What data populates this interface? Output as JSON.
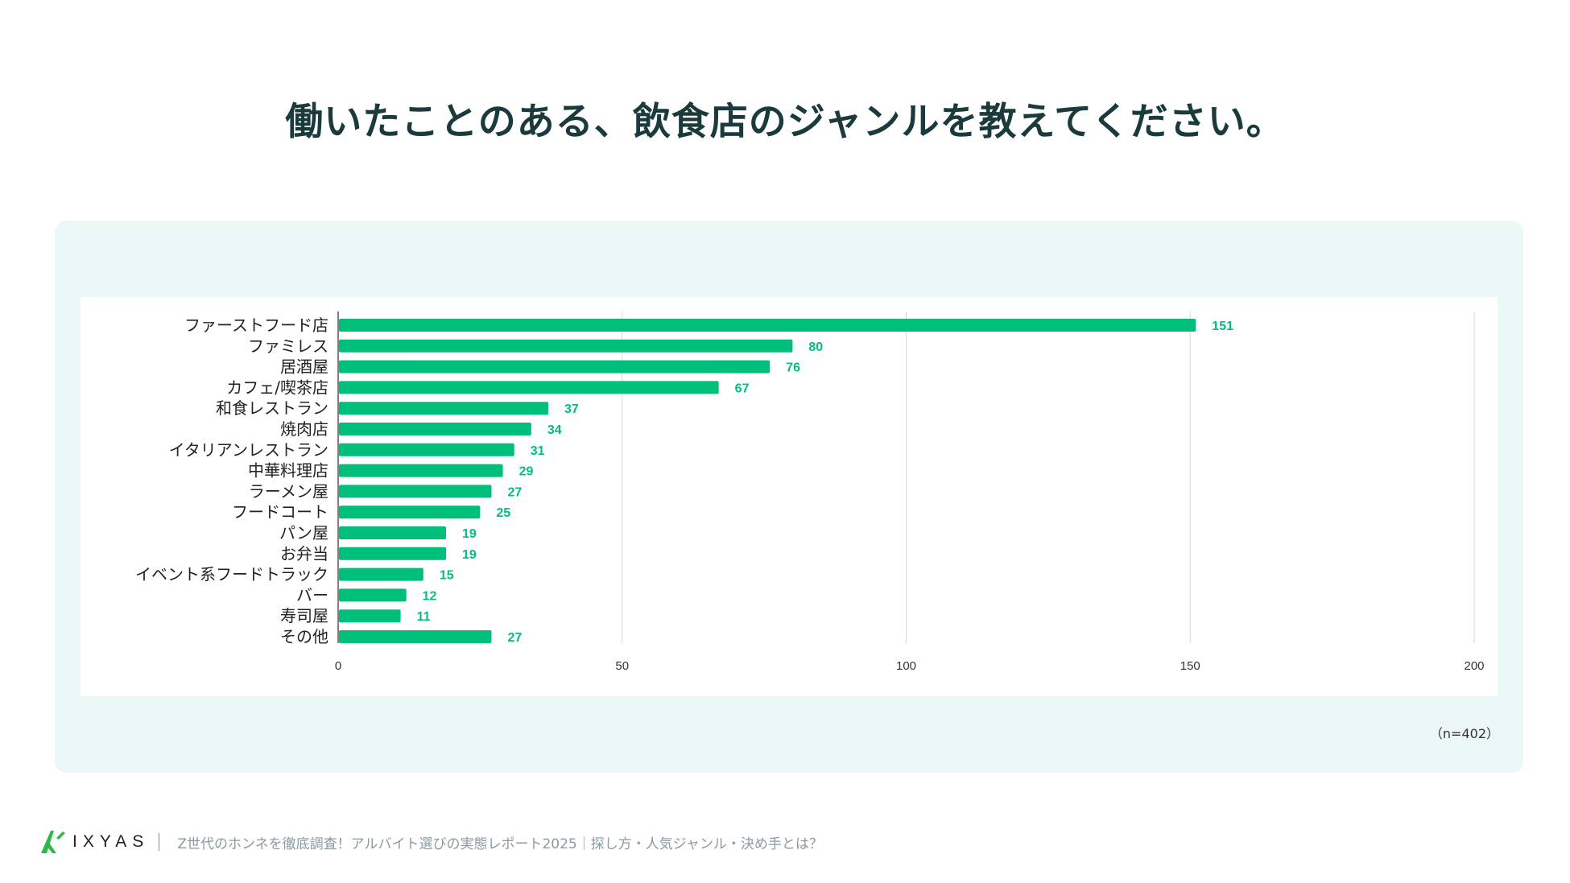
{
  "title": "働いたことのある、飲食店のジャンルを教えてください。",
  "note": "（n=402）",
  "footer": {
    "brand": "IXYAS",
    "subtitle": "Z世代のホンネを徹底調査！アルバイト選びの実態レポート2025｜探し方・人気ジャンル・決め手とは？"
  },
  "colors": {
    "bar": "#00bf7a",
    "label": "#00bf7a",
    "grid": "#d9d9d9",
    "axis": "#333333"
  },
  "chart_data": {
    "type": "bar",
    "orientation": "horizontal",
    "title": "働いたことのある、飲食店のジャンルを教えてください。",
    "categories": [
      "ファーストフード店",
      "ファミレス",
      "居酒屋",
      "カフェ/喫茶店",
      "和食レストラン",
      "焼肉店",
      "イタリアンレストラン",
      "中華料理店",
      "ラーメン屋",
      "フードコート",
      "パン屋",
      "お弁当",
      "イベント系フードトラック",
      "バー",
      "寿司屋",
      "その他"
    ],
    "values": [
      151,
      80,
      76,
      67,
      37,
      34,
      31,
      29,
      27,
      25,
      19,
      19,
      15,
      12,
      11,
      27
    ],
    "xlim": [
      0,
      200
    ],
    "xticks": [
      0,
      50,
      100,
      150,
      200
    ],
    "xlabel": "",
    "ylabel": "",
    "grid": true,
    "data_labels": true
  }
}
